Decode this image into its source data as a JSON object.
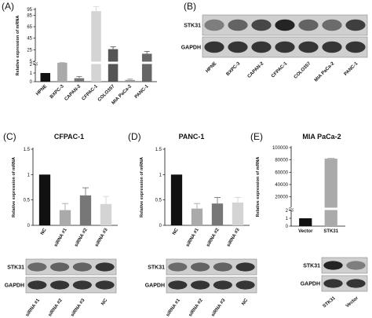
{
  "figure": {
    "panels": [
      {
        "id": "A",
        "letter": "(A)"
      },
      {
        "id": "B",
        "letter": "(B)"
      },
      {
        "id": "C",
        "letter": "(C)",
        "title": "CFPAC-1"
      },
      {
        "id": "D",
        "letter": "(D)",
        "title": "PANC-1"
      },
      {
        "id": "E",
        "letter": "(E)",
        "title": "MIA PaCa-2"
      }
    ],
    "blots": {
      "B": {
        "rows": [
          "STK31",
          "GAPDH"
        ],
        "lanes": [
          "HPNE",
          "BXPC-3",
          "CAPAN-2",
          "CFPAC-1",
          "COLO357",
          "MIA PaCa-2",
          "PANC-1"
        ],
        "stk31_intensity": [
          0.45,
          0.6,
          0.75,
          0.95,
          0.6,
          0.55,
          0.8
        ],
        "gapdh_intensity": [
          0.85,
          0.85,
          0.85,
          0.85,
          0.85,
          0.85,
          0.85
        ]
      },
      "C": {
        "rows": [
          "STK31",
          "GAPDH"
        ],
        "lanes": [
          "siRNA #1",
          "siRNA #2",
          "siRNA #3",
          "NC"
        ],
        "stk31_intensity": [
          0.55,
          0.6,
          0.6,
          0.85
        ],
        "gapdh_intensity": [
          0.85,
          0.85,
          0.85,
          0.85
        ]
      },
      "D": {
        "rows": [
          "STK31",
          "GAPDH"
        ],
        "lanes": [
          "siRNA #1",
          "siRNA #2",
          "siRNA #3",
          "NC"
        ],
        "stk31_intensity": [
          0.55,
          0.6,
          0.6,
          0.85
        ],
        "gapdh_intensity": [
          0.85,
          0.85,
          0.85,
          0.85
        ]
      },
      "E": {
        "rows": [
          "STK31",
          "GAPDH"
        ],
        "lanes": [
          "STK31",
          "Vector"
        ],
        "stk31_intensity": [
          0.95,
          0.45
        ],
        "gapdh_intensity": [
          0.85,
          0.85
        ]
      }
    }
  },
  "chart_data": [
    {
      "panel": "A",
      "type": "bar",
      "ylabel": "Relative expression of mRNA",
      "categories": [
        "HPNE",
        "BXPC-3",
        "CAPAN-2",
        "CFPAC-1",
        "COLO357",
        "MIA PaCa-2",
        "PANC-1"
      ],
      "values": [
        1,
        2.4,
        0.4,
        92,
        26,
        0.2,
        18
      ],
      "errors": [
        0,
        0.2,
        0.2,
        8,
        4,
        0.1,
        4
      ],
      "colors": [
        "#111111",
        "#aaaaaa",
        "#777777",
        "#d4d4d4",
        "#555555",
        "#999999",
        "#666666"
      ],
      "yticks_lower": [
        0,
        1,
        2
      ],
      "yticks_upper": [
        5,
        25,
        45,
        65,
        85,
        95
      ],
      "axis_break": [
        2,
        5
      ],
      "ylim": [
        0,
        95
      ]
    },
    {
      "panel": "C",
      "type": "bar",
      "ylabel": "Relative expression of mRNA",
      "categories": [
        "NC",
        "siRNA #1",
        "siRNA #2",
        "siRNA #3"
      ],
      "values": [
        1.0,
        0.3,
        0.59,
        0.42
      ],
      "errors": [
        0,
        0.13,
        0.15,
        0.15
      ],
      "colors": [
        "#111111",
        "#aaaaaa",
        "#777777",
        "#d4d4d4"
      ],
      "yticks": [
        0.0,
        0.5,
        1.0,
        1.5
      ],
      "ylim": [
        0,
        1.5
      ]
    },
    {
      "panel": "D",
      "type": "bar",
      "ylabel": "Relative expression of mRNA",
      "categories": [
        "NC",
        "siRNA #1",
        "siRNA #2",
        "siRNA #3"
      ],
      "values": [
        1.0,
        0.33,
        0.43,
        0.45
      ],
      "errors": [
        0,
        0.1,
        0.12,
        0.1
      ],
      "colors": [
        "#111111",
        "#aaaaaa",
        "#777777",
        "#d4d4d4"
      ],
      "yticks": [
        0.0,
        0.5,
        1.0,
        1.5
      ],
      "ylim": [
        0,
        1.5
      ]
    },
    {
      "panel": "E",
      "type": "bar",
      "ylabel": "Relative expression of mRNA",
      "categories": [
        "Vector",
        "STK31"
      ],
      "values": [
        1,
        82000
      ],
      "errors": [
        0,
        600
      ],
      "colors": [
        "#111111",
        "#aaaaaa"
      ],
      "yticks_lower": [
        0,
        1,
        2
      ],
      "yticks_upper": [
        20000,
        40000,
        60000,
        80000,
        100000
      ],
      "axis_break": [
        2,
        3000
      ],
      "ylim": [
        0,
        100000
      ]
    }
  ]
}
